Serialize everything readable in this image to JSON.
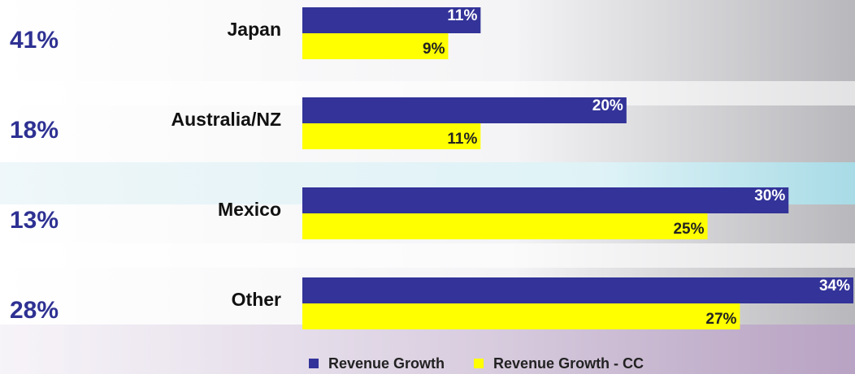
{
  "chart_data": {
    "type": "bar",
    "orientation": "horizontal",
    "categories": [
      "Japan",
      "Australia/NZ",
      "Mexico",
      "Other"
    ],
    "shares": [
      "41%",
      "18%",
      "13%",
      "28%"
    ],
    "series": [
      {
        "name": "Revenue Growth",
        "color": "#333399",
        "values": [
          11,
          20,
          30,
          34
        ],
        "value_labels": [
          "11%",
          "20%",
          "30%",
          "34%"
        ]
      },
      {
        "name": "Revenue Growth - CC",
        "color": "#ffff00",
        "values": [
          9,
          11,
          25,
          27
        ],
        "value_labels": [
          "9%",
          "11%",
          "25%",
          "27%"
        ]
      }
    ],
    "xlim": [
      0,
      34
    ],
    "legend": "bottom"
  }
}
